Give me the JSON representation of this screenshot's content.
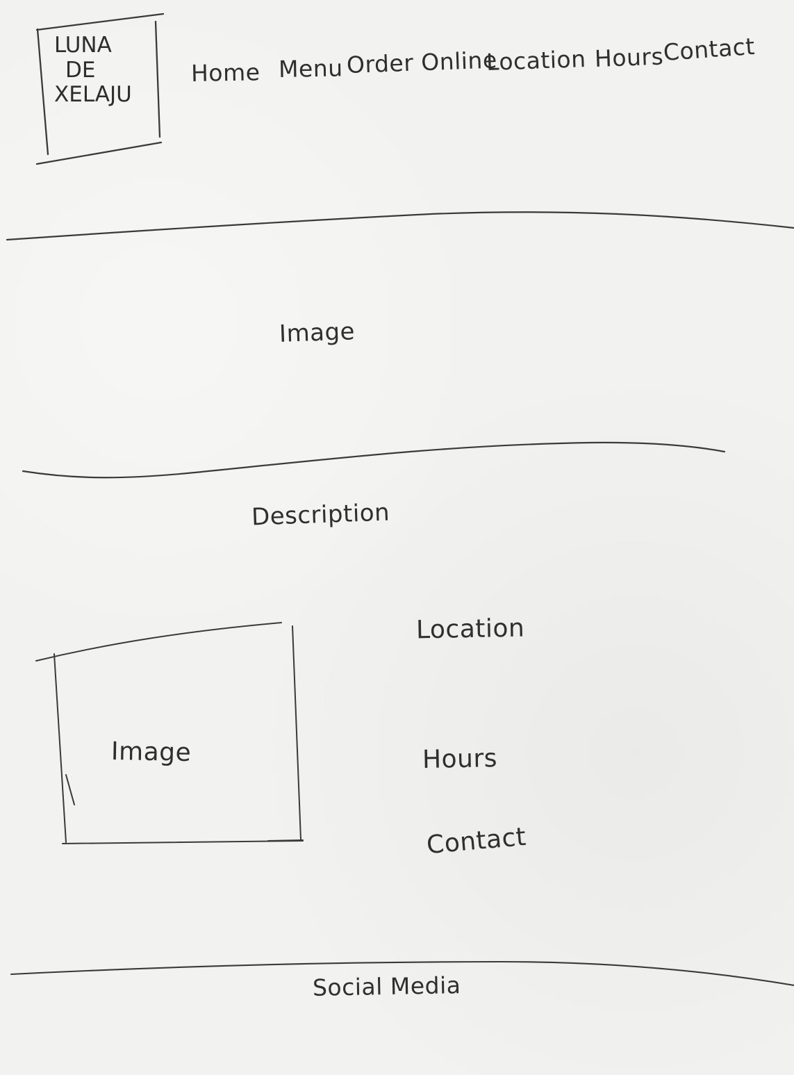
{
  "logo": {
    "line1": "LUNA",
    "line2": "DE",
    "line3": "XELAJU"
  },
  "nav": {
    "home": "Home",
    "menu": "Menu",
    "order": "Order Online",
    "location": "Location",
    "hours": "Hours",
    "contact": "Contact"
  },
  "hero": {
    "label": "Image"
  },
  "description": {
    "label": "Description"
  },
  "content": {
    "image_label": "Image",
    "location": "Location",
    "hours": "Hours",
    "contact": "Contact"
  },
  "footer": {
    "label": "Social Media"
  },
  "colors": {
    "paper": "#f2f2f0",
    "ink": "#2f2f2f"
  }
}
